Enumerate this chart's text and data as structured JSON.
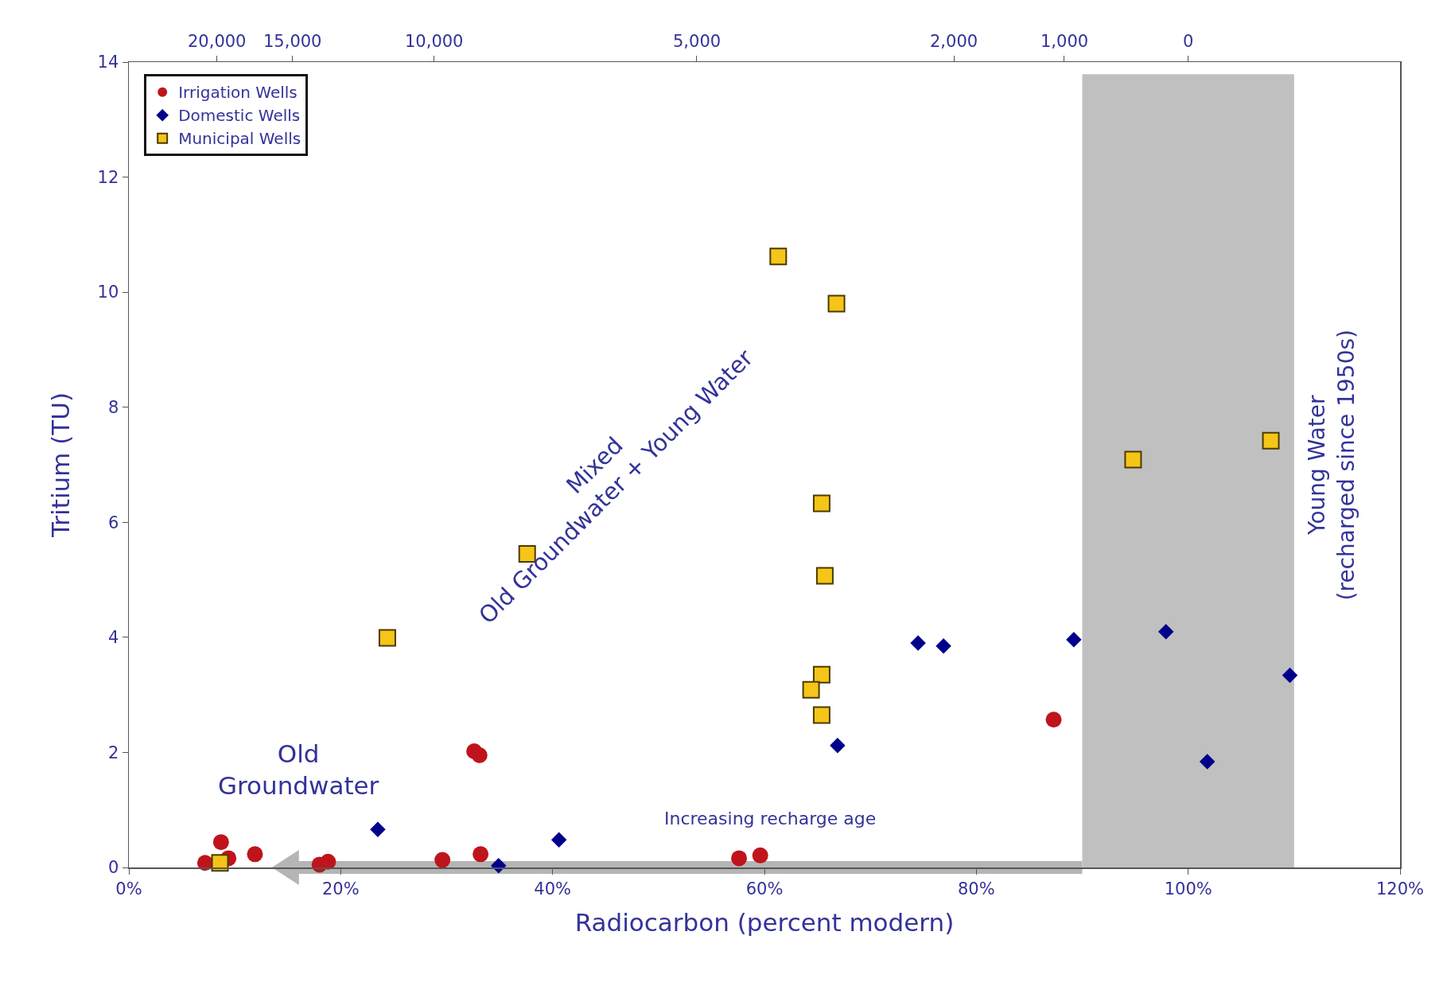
{
  "chart_data": {
    "type": "scatter",
    "xlabel": "Radiocarbon (percent modern)",
    "ylabel": "Tritium (TU)",
    "xlim": [
      0,
      120
    ],
    "xticks": [
      {
        "value": 0,
        "label": "0%"
      },
      {
        "value": 20,
        "label": "20%"
      },
      {
        "value": 40,
        "label": "40%"
      },
      {
        "value": 60,
        "label": "60%"
      },
      {
        "value": 80,
        "label": "80%"
      },
      {
        "value": 100,
        "label": "100%"
      },
      {
        "value": 120,
        "label": "120%"
      }
    ],
    "ylim": [
      0,
      14
    ],
    "yticks": [
      0,
      2,
      4,
      6,
      8,
      10,
      12,
      14
    ],
    "grid": false,
    "legend": "top left",
    "series": [
      {
        "name": "Irrigation Wells",
        "color": "#c0141c",
        "marker": "circle",
        "x": [
          7.2,
          8.7,
          9.4,
          11.9,
          18.0,
          18.8,
          29.6,
          33.2,
          32.6,
          33.1,
          57.6,
          59.6,
          87.3
        ],
        "values": [
          0.08,
          0.44,
          0.16,
          0.23,
          0.05,
          0.1,
          0.13,
          0.23,
          2.02,
          1.95,
          0.16,
          0.21,
          2.57
        ]
      },
      {
        "name": "Domestic Wells",
        "color": "#00008b",
        "marker": "diamond",
        "x": [
          23.5,
          34.9,
          40.6,
          66.9,
          74.5,
          76.9,
          89.2,
          97.9,
          101.8,
          109.6
        ],
        "values": [
          0.66,
          0.03,
          0.48,
          2.12,
          3.9,
          3.85,
          3.96,
          4.1,
          1.84,
          3.34
        ]
      },
      {
        "name": "Municipal Wells",
        "color": "#f5c518",
        "marker": "square",
        "x": [
          8.6,
          24.4,
          37.6,
          61.3,
          66.8,
          65.4,
          65.7,
          65.4,
          64.4,
          65.4,
          94.8,
          107.8
        ],
        "values": [
          0.08,
          3.99,
          5.45,
          10.62,
          9.8,
          6.33,
          5.07,
          3.35,
          3.09,
          2.65,
          7.09,
          7.42
        ]
      }
    ],
    "bands": [
      {
        "axis": "x",
        "from": 90,
        "to": 110,
        "color": "#c0c0c0"
      }
    ],
    "annotations": [
      "Old\nGroundwater",
      "Mixed\nOld Groundwater + Young Water",
      "Young Water\n(recharged since 1950s)",
      "Increasing recharge age",
      "20,000",
      "15,000",
      "10,000",
      "5,000",
      "2,000",
      "1,000",
      "0"
    ]
  }
}
